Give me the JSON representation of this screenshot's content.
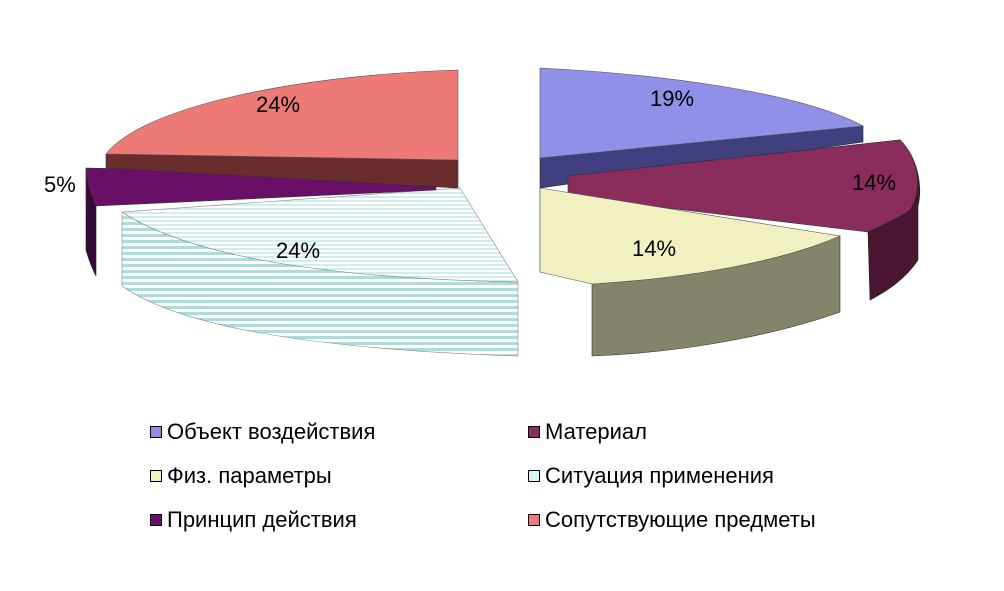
{
  "chart_data": {
    "type": "pie",
    "title": "",
    "slices": [
      {
        "name": "Объект воздействия",
        "value": 19,
        "label": "19%",
        "color": "#9090e8",
        "side": "#404080"
      },
      {
        "name": "Материал",
        "value": 14,
        "label": "14%",
        "color": "#8b2d5c",
        "side": "#4a1530"
      },
      {
        "name": "Физ. параметры",
        "value": 14,
        "label": "14%",
        "color": "#f0f0c0",
        "side": "#84846a"
      },
      {
        "name": "Ситуация применения",
        "value": 24,
        "label": "24%",
        "color": "#d8f4f4",
        "side": "#a8dede"
      },
      {
        "name": "Принцип действия",
        "value": 5,
        "label": "5%",
        "color": "#6a0f68",
        "side": "#380838"
      },
      {
        "name": "Сопутствующие предметы",
        "value": 24,
        "label": "24%",
        "color": "#ee7a78",
        "side": "#6a2c2c"
      }
    ],
    "legend": {
      "position": "bottom",
      "items": [
        {
          "label": "Объект воздействия",
          "color": "#9090e8"
        },
        {
          "label": "Материал",
          "color": "#8b2d5c"
        },
        {
          "label": "Физ. параметры",
          "color": "#f0f0c0"
        },
        {
          "label": "Ситуация применения",
          "color": "#d8f4f4"
        },
        {
          "label": "Принцип действия",
          "color": "#6a0f68"
        },
        {
          "label": "Сопутствующие предметы",
          "color": "#ee7a78"
        }
      ]
    }
  }
}
